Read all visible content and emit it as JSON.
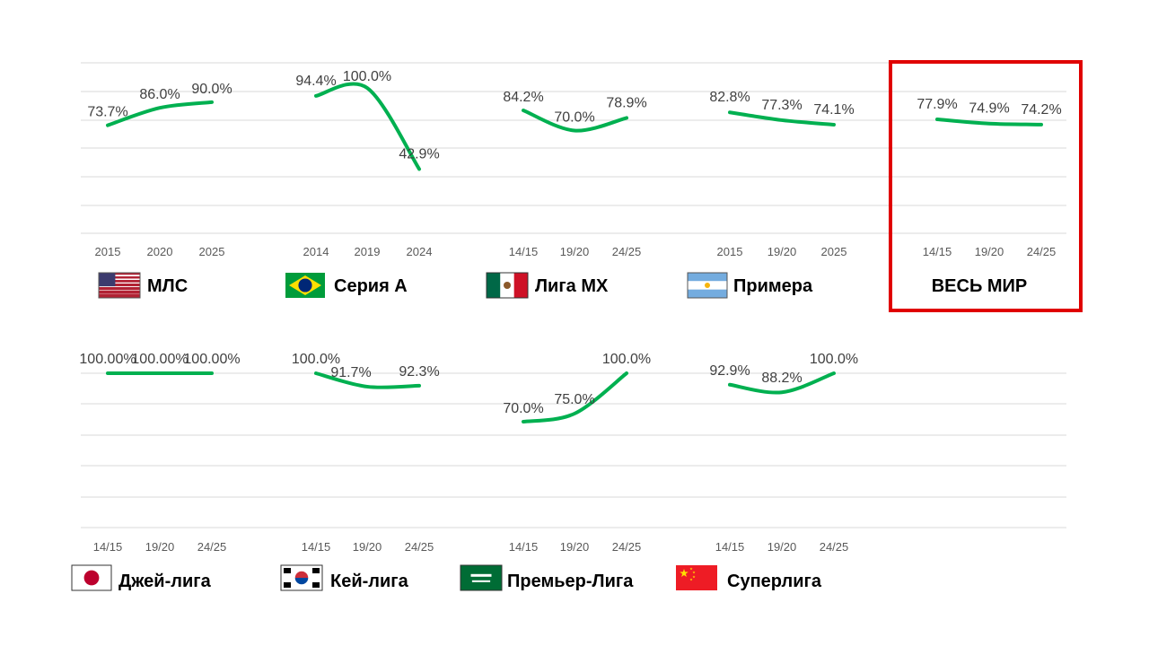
{
  "colors": {
    "line": "#00b050",
    "grid": "#d9d9d9",
    "highlight": "#e00000"
  },
  "chart_data": [
    {
      "type": "line",
      "league": "МЛС",
      "flag": "usa-flag-icon",
      "categories": [
        "2015",
        "2020",
        "2025"
      ],
      "values": [
        73.7,
        86.0,
        90.0
      ],
      "labels": [
        "73.7%",
        "86.0%",
        "90.0%"
      ],
      "ylim": [
        0,
        100
      ]
    },
    {
      "type": "line",
      "league": "Серия А",
      "flag": "brazil-flag-icon",
      "categories": [
        "2014",
        "2019",
        "2024"
      ],
      "values": [
        94.4,
        100.0,
        42.9
      ],
      "labels": [
        "94.4%",
        "100.0%",
        "42.9%"
      ],
      "ylim": [
        0,
        100
      ]
    },
    {
      "type": "line",
      "league": "Лига MX",
      "flag": "mexico-flag-icon",
      "categories": [
        "14/15",
        "19/20",
        "24/25"
      ],
      "values": [
        84.2,
        70.0,
        78.9
      ],
      "labels": [
        "84.2%",
        "70.0%",
        "78.9%"
      ],
      "ylim": [
        0,
        100
      ]
    },
    {
      "type": "line",
      "league": "Примера",
      "flag": "argentina-flag-icon",
      "categories": [
        "2015",
        "19/20",
        "2025"
      ],
      "values": [
        82.8,
        77.3,
        74.1
      ],
      "labels": [
        "82.8%",
        "77.3%",
        "74.1%"
      ],
      "ylim": [
        0,
        100
      ]
    },
    {
      "type": "line",
      "league": "ВЕСЬ МИР",
      "flag": "",
      "highlight": true,
      "categories": [
        "14/15",
        "19/20",
        "24/25"
      ],
      "values": [
        77.9,
        74.9,
        74.2
      ],
      "labels": [
        "77.9%",
        "74.9%",
        "74.2%"
      ],
      "ylim": [
        0,
        100
      ]
    },
    {
      "type": "line",
      "league": "Джей-лига",
      "flag": "japan-flag-icon",
      "categories": [
        "14/15",
        "19/20",
        "24/25"
      ],
      "values": [
        100.0,
        100.0,
        100.0
      ],
      "labels": [
        "100.00%",
        "100.00%",
        "100.00%"
      ],
      "ylim": [
        0,
        100
      ]
    },
    {
      "type": "line",
      "league": "Кей-лига",
      "flag": "korea-flag-icon",
      "categories": [
        "14/15",
        "19/20",
        "24/25"
      ],
      "values": [
        100.0,
        91.7,
        92.3
      ],
      "labels": [
        "100.0%",
        "91.7%",
        "92.3%"
      ],
      "ylim": [
        0,
        100
      ]
    },
    {
      "type": "line",
      "league": "Премьер-Лига",
      "flag": "saudi-flag-icon",
      "categories": [
        "14/15",
        "19/20",
        "24/25"
      ],
      "values": [
        70.0,
        75.0,
        100.0
      ],
      "labels": [
        "70.0%",
        "75.0%",
        "100.0%"
      ],
      "ylim": [
        0,
        100
      ]
    },
    {
      "type": "line",
      "league": "Суперлига",
      "flag": "china-flag-icon",
      "categories": [
        "14/15",
        "19/20",
        "24/25"
      ],
      "values": [
        92.9,
        88.2,
        100.0
      ],
      "labels": [
        "92.9%",
        "88.2%",
        "100.0%"
      ],
      "ylim": [
        0,
        100
      ]
    }
  ]
}
